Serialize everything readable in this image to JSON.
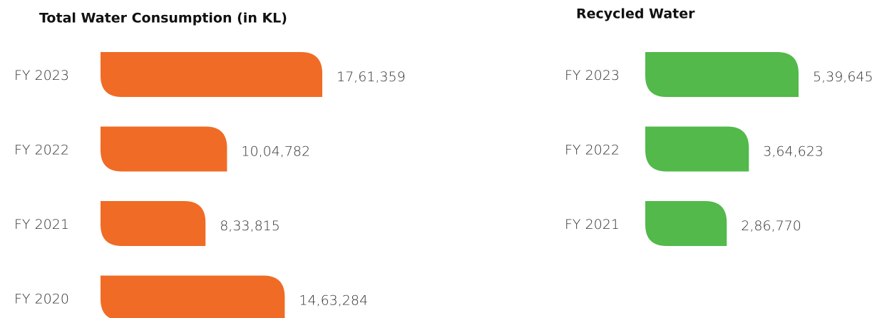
{
  "chart_data": [
    {
      "type": "bar",
      "title": "Total Water Consumption (in KL)",
      "categories": [
        "FY 2023",
        "FY 2022",
        "FY 2021",
        "FY 2020"
      ],
      "values": [
        1761359,
        1004782,
        833815,
        1463284
      ],
      "value_labels": [
        "17,61,359",
        "10,04,782",
        "8,33,815",
        "14,63,284"
      ],
      "color": "#f06b25"
    },
    {
      "type": "bar",
      "title": "Recycled Water",
      "categories": [
        "FY 2023",
        "FY 2022",
        "FY 2021"
      ],
      "values": [
        539645,
        364623,
        286770
      ],
      "value_labels": [
        "5,39,645",
        "3,64,623",
        "2,86,770"
      ],
      "color": "#52b94a"
    }
  ]
}
